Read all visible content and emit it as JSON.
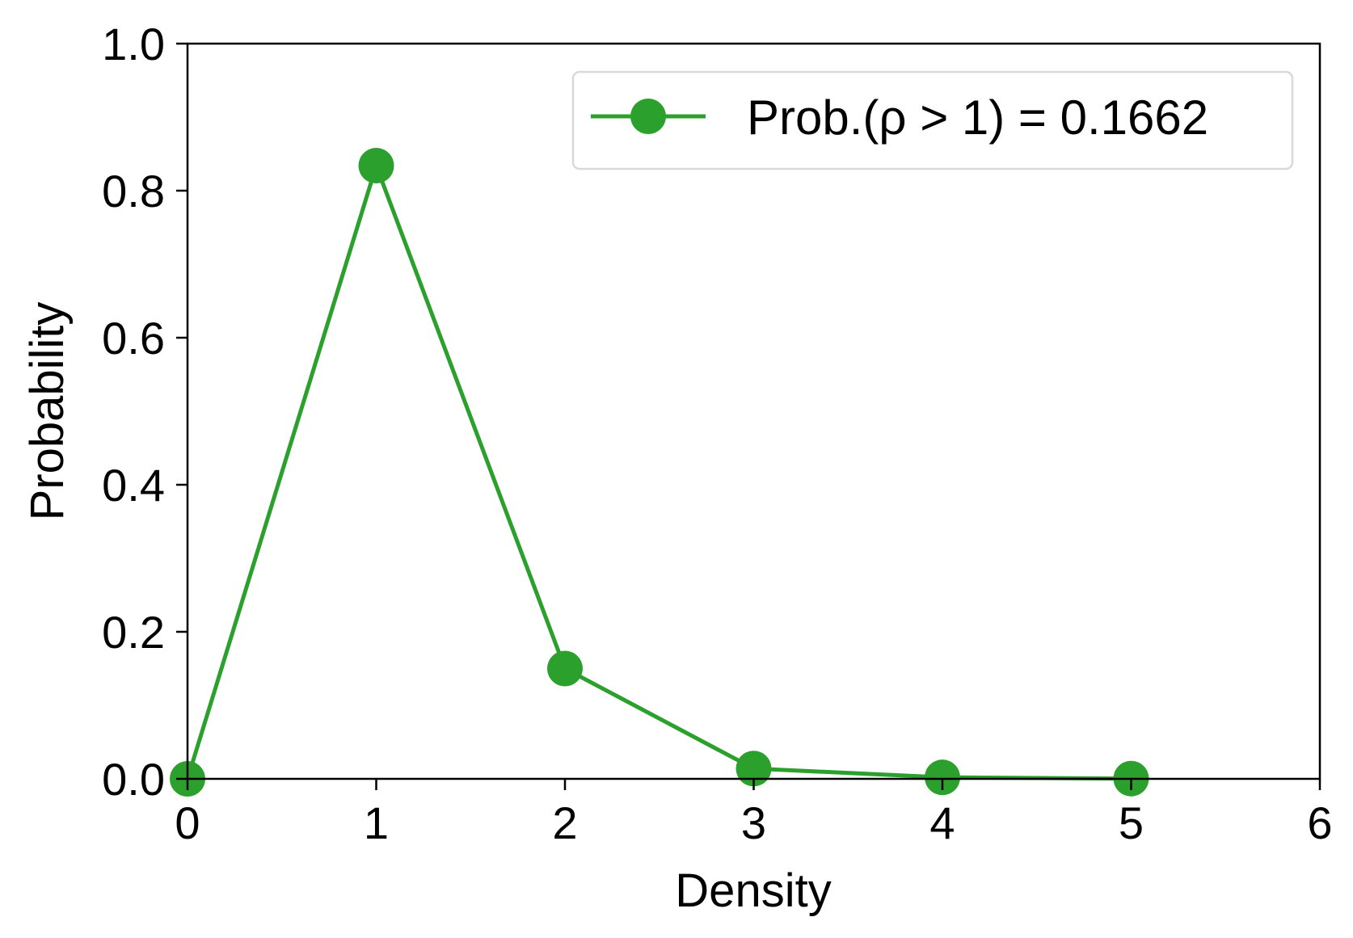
{
  "chart_data": {
    "type": "line",
    "title": "",
    "xlabel": "Density",
    "ylabel": "Probability",
    "xlim": [
      0,
      6
    ],
    "ylim": [
      0,
      1.0
    ],
    "x_ticks": [
      "0",
      "1",
      "2",
      "3",
      "4",
      "5",
      "6"
    ],
    "y_ticks": [
      "0.0",
      "0.2",
      "0.4",
      "0.6",
      "0.8",
      "1.0"
    ],
    "grid": false,
    "legend_position": "top-right",
    "series": [
      {
        "name": "Prob.(ρ > 1) = 0.1662",
        "color": "#2ca02c",
        "marker": "circle",
        "x": [
          0,
          1,
          2,
          3,
          4,
          5
        ],
        "y": [
          0.0,
          0.834,
          0.15,
          0.014,
          0.002,
          0.0003
        ]
      }
    ]
  }
}
